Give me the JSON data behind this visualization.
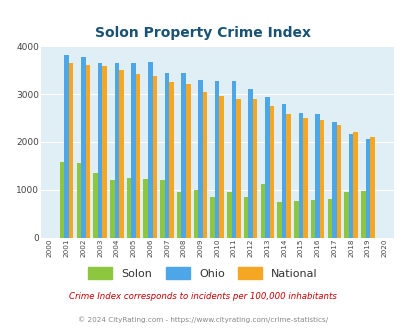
{
  "title": "Solon Property Crime Index",
  "years": [
    2000,
    2001,
    2002,
    2003,
    2004,
    2005,
    2006,
    2007,
    2008,
    2009,
    2010,
    2011,
    2012,
    2013,
    2014,
    2015,
    2016,
    2017,
    2018,
    2019,
    2020
  ],
  "solon": [
    0,
    1580,
    1550,
    1350,
    1200,
    1250,
    1220,
    1210,
    950,
    1000,
    850,
    950,
    850,
    1120,
    750,
    760,
    780,
    800,
    950,
    980,
    0
  ],
  "ohio": [
    0,
    3820,
    3770,
    3640,
    3640,
    3640,
    3660,
    3450,
    3450,
    3300,
    3270,
    3270,
    3100,
    2940,
    2800,
    2600,
    2580,
    2420,
    2170,
    2070,
    0
  ],
  "national": [
    0,
    3640,
    3600,
    3590,
    3500,
    3420,
    3380,
    3260,
    3200,
    3040,
    2960,
    2900,
    2900,
    2760,
    2590,
    2490,
    2450,
    2360,
    2200,
    2110,
    0
  ],
  "solon_color": "#8dc63f",
  "ohio_color": "#4da6e8",
  "national_color": "#f5a623",
  "bg_color": "#e0eff5",
  "title_color": "#1a5276",
  "ylim": [
    0,
    4000
  ],
  "ylabel_ticks": [
    0,
    1000,
    2000,
    3000,
    4000
  ],
  "footnote1": "Crime Index corresponds to incidents per 100,000 inhabitants",
  "footnote2": "© 2024 CityRating.com - https://www.cityrating.com/crime-statistics/",
  "footnote1_color": "#cc0000",
  "footnote2_color": "#888888"
}
